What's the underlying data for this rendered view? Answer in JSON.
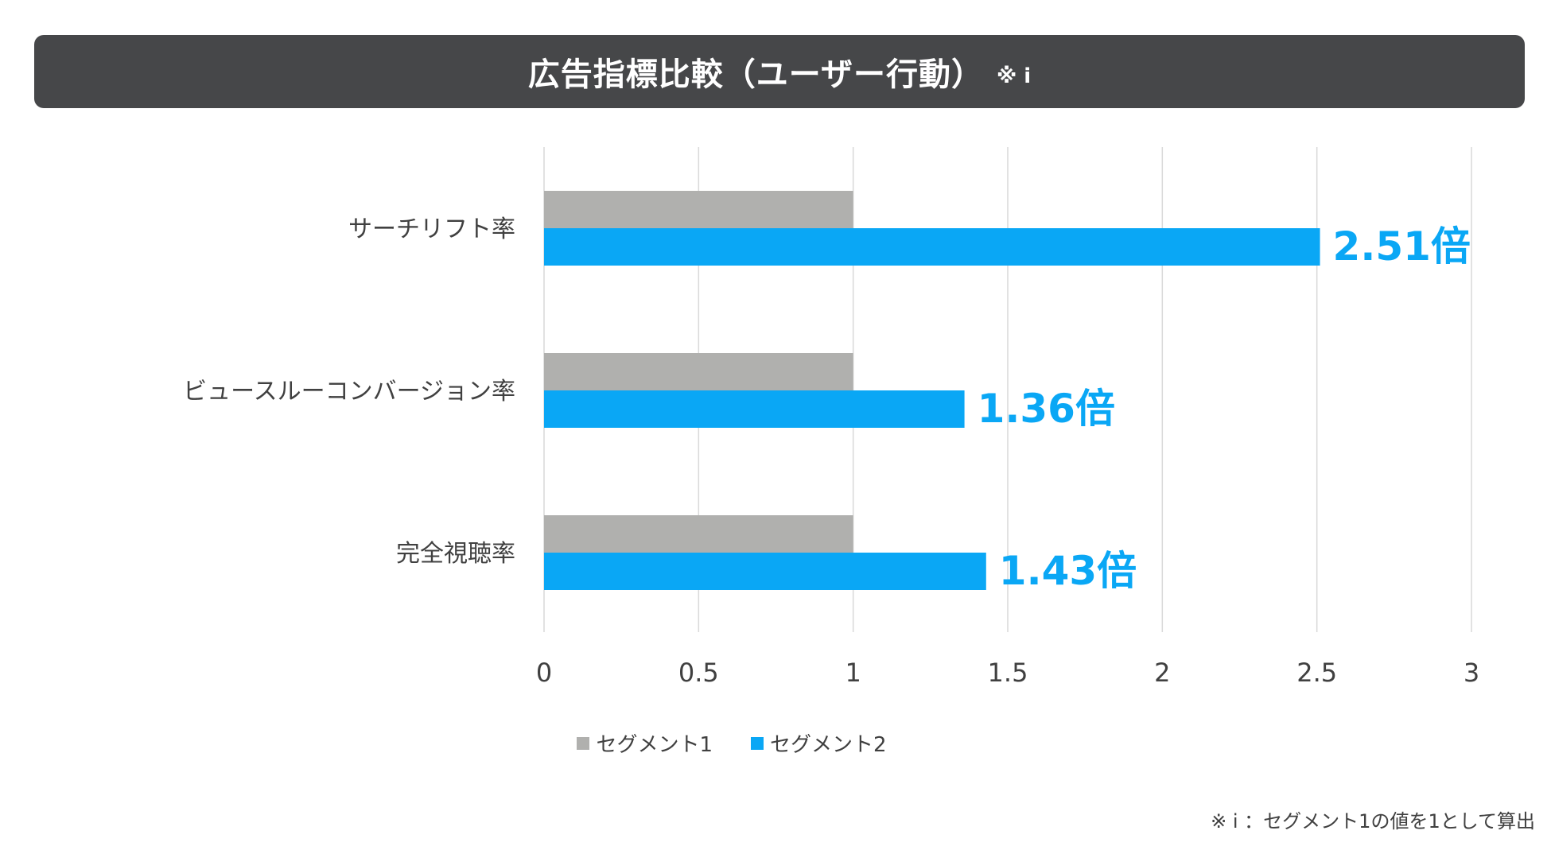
{
  "title": {
    "main": "広告指標比較（ユーザー行動）",
    "note": "※ i"
  },
  "chart_data": {
    "type": "bar",
    "orientation": "horizontal",
    "categories": [
      "サーチリフト率",
      "ビュースルーコンバージョン率",
      "完全視聴率"
    ],
    "series": [
      {
        "name": "セグメント1",
        "values": [
          1,
          1,
          1
        ],
        "color": "#b0b0ae"
      },
      {
        "name": "セグメント2",
        "values": [
          2.51,
          1.36,
          1.43
        ],
        "color": "#0aa7f5"
      }
    ],
    "data_labels": [
      "2.51倍",
      "1.36倍",
      "1.43倍"
    ],
    "xlim": [
      0,
      3
    ],
    "x_ticks": [
      "0",
      "0.5",
      "1",
      "1.5",
      "2",
      "2.5",
      "3"
    ],
    "grid": true,
    "legend_position": "bottom"
  },
  "footnote": "※ i ：セグメント1の値を1として算出",
  "colors": {
    "title_bg": "#464749",
    "label_color": "#0aa7f5",
    "grid": "#d9d9d9",
    "text": "#404040"
  }
}
